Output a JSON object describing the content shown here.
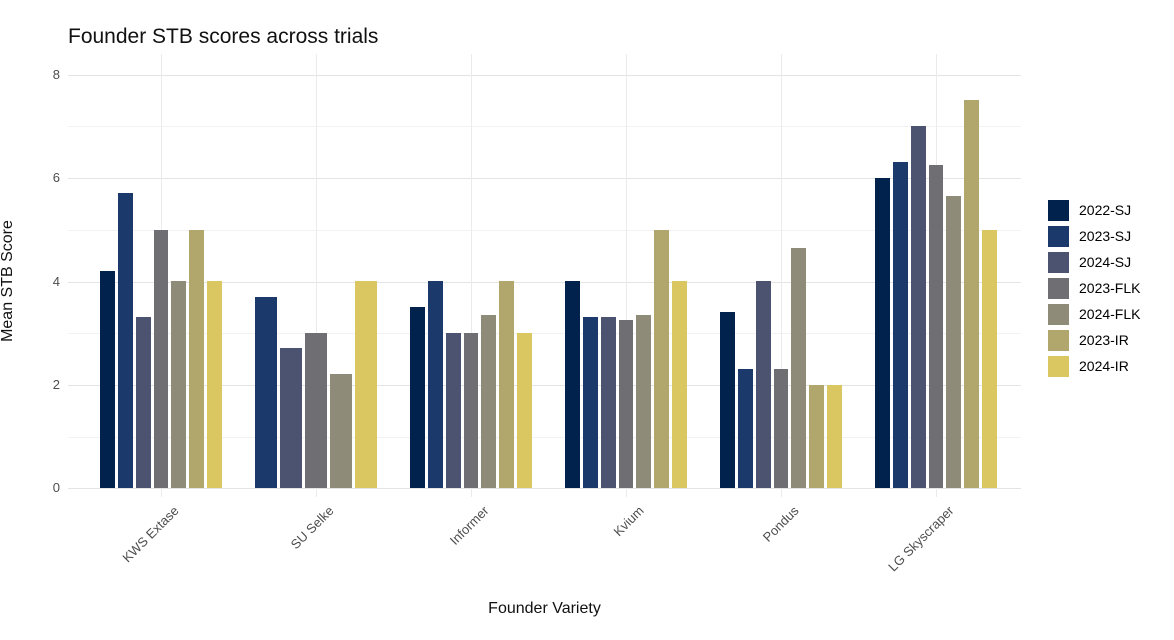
{
  "chart_data": {
    "type": "bar",
    "title": "Founder STB scores across trials",
    "xlabel": "Founder Variety",
    "ylabel": "Mean STB Score",
    "categories": [
      "KWS Extase",
      "SU Selke",
      "Informer",
      "Kvium",
      "Pondus",
      "LG Skyscraper"
    ],
    "series": [
      {
        "name": "2022-SJ",
        "color": "#00224C",
        "values": [
          4.2,
          null,
          3.5,
          4.0,
          3.4,
          6.0
        ]
      },
      {
        "name": "2023-SJ",
        "color": "#1B3A6B",
        "values": [
          5.7,
          3.7,
          4.0,
          3.3,
          2.3,
          6.3
        ]
      },
      {
        "name": "2024-SJ",
        "color": "#4B5370",
        "values": [
          3.3,
          2.7,
          3.0,
          3.3,
          4.0,
          7.0
        ]
      },
      {
        "name": "2023-FLK",
        "color": "#6F6F73",
        "values": [
          5.0,
          3.0,
          3.0,
          3.25,
          2.3,
          6.25
        ]
      },
      {
        "name": "2024-FLK",
        "color": "#8E8B78",
        "values": [
          4.0,
          2.2,
          3.35,
          3.35,
          4.65,
          5.65
        ]
      },
      {
        "name": "2023-IR",
        "color": "#B1A66C",
        "values": [
          5.0,
          null,
          4.0,
          5.0,
          2.0,
          7.5
        ]
      },
      {
        "name": "2024-IR",
        "color": "#DBC761",
        "values": [
          4.0,
          4.0,
          3.0,
          4.0,
          2.0,
          5.0
        ]
      }
    ],
    "y_ticks": [
      0,
      2,
      4,
      6,
      8
    ],
    "ylim": [
      0,
      8.4
    ],
    "grid": "horizontal major at even values, minor at odd values, vertical line at each category center",
    "legend_position": "right",
    "background": "#ffffff"
  }
}
